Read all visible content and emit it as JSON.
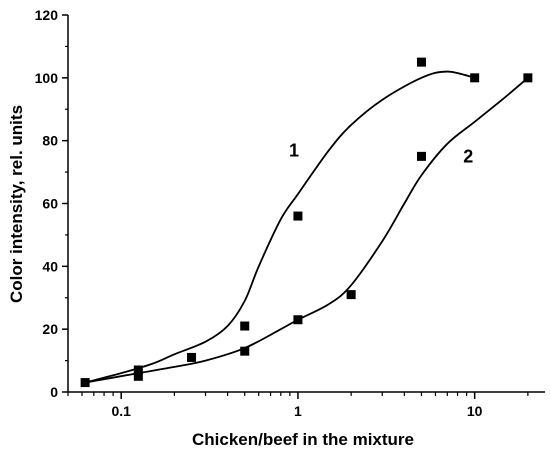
{
  "chart_data": {
    "type": "scatter",
    "xscale": "log",
    "xlim": [
      0.05,
      25
    ],
    "ylim": [
      0,
      120
    ],
    "xlabel": "Chicken/beef in the mixture",
    "ylabel": "Color intensity, rel. units",
    "x_ticks": [
      0.1,
      1,
      10
    ],
    "x_tick_labels": [
      "0.1",
      "1",
      "10"
    ],
    "y_ticks": [
      0,
      20,
      40,
      60,
      80,
      100,
      120
    ],
    "y_tick_labels": [
      "0",
      "20",
      "40",
      "60",
      "80",
      "100",
      "120"
    ],
    "grid": false,
    "legend": "none",
    "series": [
      {
        "name": "1",
        "x": [
          0.0625,
          0.125,
          0.25,
          0.5,
          1,
          5,
          10
        ],
        "y": [
          3,
          7,
          11,
          21,
          56,
          105,
          100
        ],
        "fit_curve": {
          "x": [
            0.0625,
            0.1,
            0.15,
            0.2,
            0.3,
            0.4,
            0.5,
            0.6,
            0.8,
            1,
            1.5,
            2,
            3,
            5,
            7,
            10
          ],
          "y": [
            3,
            6,
            9,
            12,
            16,
            21,
            29,
            40,
            55,
            63,
            77,
            85,
            93,
            100,
            102,
            100
          ]
        },
        "label_pos": {
          "x": 0.95,
          "y": 75
        }
      },
      {
        "name": "2",
        "x": [
          0.125,
          0.5,
          1,
          2,
          5,
          20
        ],
        "y": [
          5,
          13,
          23,
          31,
          75,
          100
        ],
        "fit_curve": {
          "x": [
            0.0625,
            0.125,
            0.2,
            0.3,
            0.5,
            0.8,
            1,
            1.5,
            2,
            3,
            4,
            5,
            7,
            10,
            15,
            20
          ],
          "y": [
            3,
            6,
            8,
            10,
            14,
            20,
            23,
            28,
            34,
            48,
            60,
            69,
            79,
            86,
            94,
            100
          ]
        },
        "label_pos": {
          "x": 9.2,
          "y": 73
        }
      }
    ],
    "marker": "square",
    "line_color": "#000000",
    "marker_color": "#000000"
  }
}
